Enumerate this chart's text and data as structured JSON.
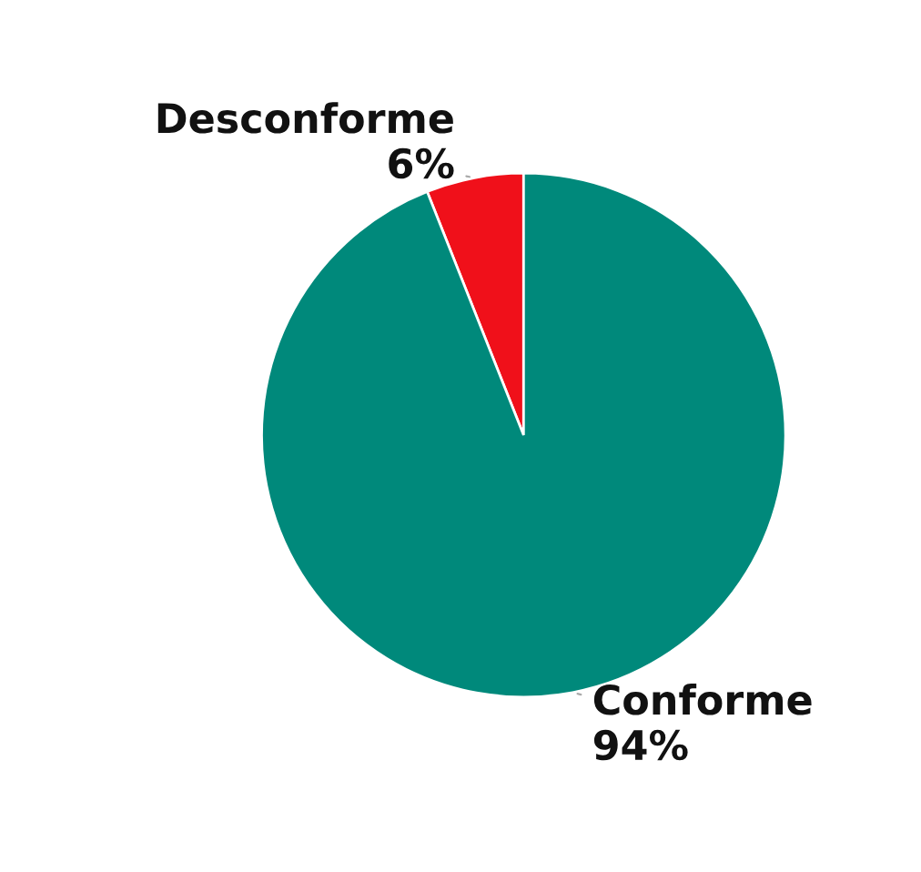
{
  "chart_data": {
    "type": "pie",
    "categories": [
      "Desconforme",
      "Conforme"
    ],
    "values": [
      6,
      94
    ],
    "value_labels": [
      "6%",
      "94%"
    ],
    "colors": [
      "#f0101a",
      "#00897b"
    ],
    "legend": false
  }
}
